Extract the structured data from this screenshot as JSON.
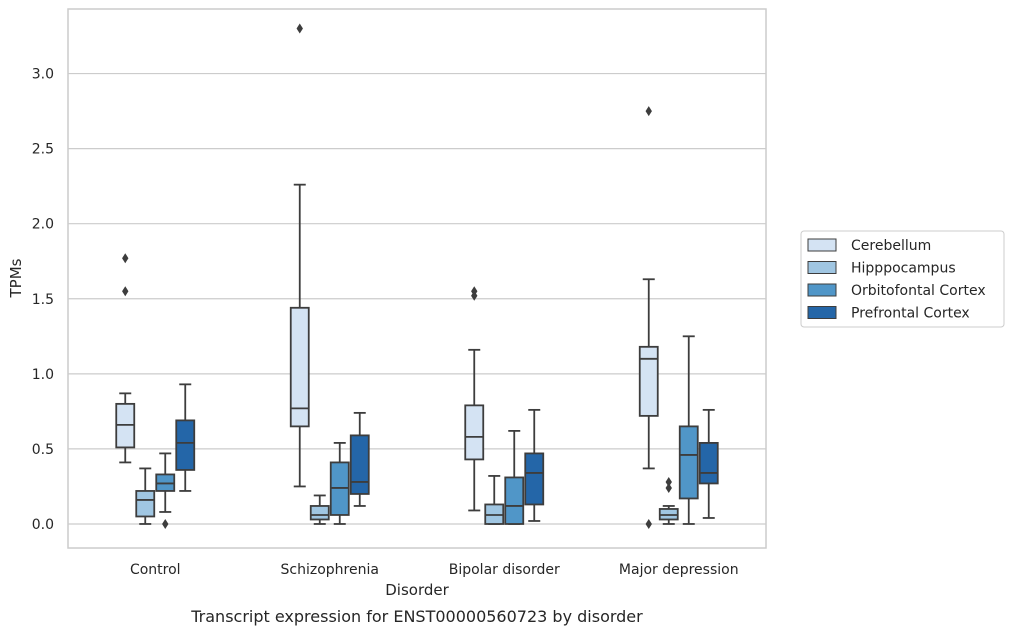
{
  "chart_data": {
    "type": "box",
    "title": "",
    "caption": "Transcript expression for ENST00000560723 by disorder",
    "xlabel": "Disorder",
    "ylabel": "TPMs",
    "ylim": [
      -0.16,
      3.43
    ],
    "yticks": [
      "0.0",
      "0.5",
      "1.0",
      "1.5",
      "2.0",
      "2.5",
      "3.0"
    ],
    "grid": "horizontal",
    "legend_position": "right",
    "categories": [
      "Control",
      "Schizophrenia",
      "Bipolar disorder",
      "Major depression"
    ],
    "series": [
      {
        "name": "Cerebellum",
        "color": "#d4e3f3",
        "boxes": [
          {
            "whisker_low": 0.41,
            "q1": 0.51,
            "median": 0.66,
            "q3": 0.8,
            "whisker_high": 0.87,
            "outliers": [
              1.55,
              1.77
            ]
          },
          {
            "whisker_low": 0.25,
            "q1": 0.65,
            "median": 0.77,
            "q3": 1.44,
            "whisker_high": 2.26,
            "outliers": [
              3.3
            ]
          },
          {
            "whisker_low": 0.09,
            "q1": 0.43,
            "median": 0.58,
            "q3": 0.79,
            "whisker_high": 1.16,
            "outliers": [
              1.52,
              1.55
            ]
          },
          {
            "whisker_low": 0.37,
            "q1": 0.72,
            "median": 1.1,
            "q3": 1.18,
            "whisker_high": 1.63,
            "outliers": [
              0.0,
              2.75
            ]
          }
        ]
      },
      {
        "name": "Hipppocampus",
        "color": "#a0c6e2",
        "boxes": [
          {
            "whisker_low": 0.0,
            "q1": 0.05,
            "median": 0.16,
            "q3": 0.22,
            "whisker_high": 0.37,
            "outliers": []
          },
          {
            "whisker_low": 0.0,
            "q1": 0.03,
            "median": 0.06,
            "q3": 0.12,
            "whisker_high": 0.19,
            "outliers": []
          },
          {
            "whisker_low": 0.0,
            "q1": 0.0,
            "median": 0.06,
            "q3": 0.13,
            "whisker_high": 0.32,
            "outliers": []
          },
          {
            "whisker_low": 0.0,
            "q1": 0.03,
            "median": 0.06,
            "q3": 0.1,
            "whisker_high": 0.12,
            "outliers": [
              0.24,
              0.28
            ]
          }
        ]
      },
      {
        "name": "Orbitofontal Cortex",
        "color": "#5096c8",
        "boxes": [
          {
            "whisker_low": 0.08,
            "q1": 0.22,
            "median": 0.27,
            "q3": 0.33,
            "whisker_high": 0.47,
            "outliers": [
              0.0
            ]
          },
          {
            "whisker_low": 0.0,
            "q1": 0.06,
            "median": 0.24,
            "q3": 0.41,
            "whisker_high": 0.54,
            "outliers": []
          },
          {
            "whisker_low": 0.0,
            "q1": 0.0,
            "median": 0.12,
            "q3": 0.31,
            "whisker_high": 0.62,
            "outliers": []
          },
          {
            "whisker_low": 0.0,
            "q1": 0.17,
            "median": 0.46,
            "q3": 0.65,
            "whisker_high": 1.25,
            "outliers": []
          }
        ]
      },
      {
        "name": "Prefrontal Cortex",
        "color": "#2466a8",
        "boxes": [
          {
            "whisker_low": 0.22,
            "q1": 0.36,
            "median": 0.54,
            "q3": 0.69,
            "whisker_high": 0.93,
            "outliers": []
          },
          {
            "whisker_low": 0.12,
            "q1": 0.2,
            "median": 0.28,
            "q3": 0.59,
            "whisker_high": 0.74,
            "outliers": []
          },
          {
            "whisker_low": 0.02,
            "q1": 0.13,
            "median": 0.34,
            "q3": 0.47,
            "whisker_high": 0.76,
            "outliers": []
          },
          {
            "whisker_low": 0.04,
            "q1": 0.27,
            "median": 0.34,
            "q3": 0.54,
            "whisker_high": 0.76,
            "outliers": []
          }
        ]
      }
    ]
  }
}
